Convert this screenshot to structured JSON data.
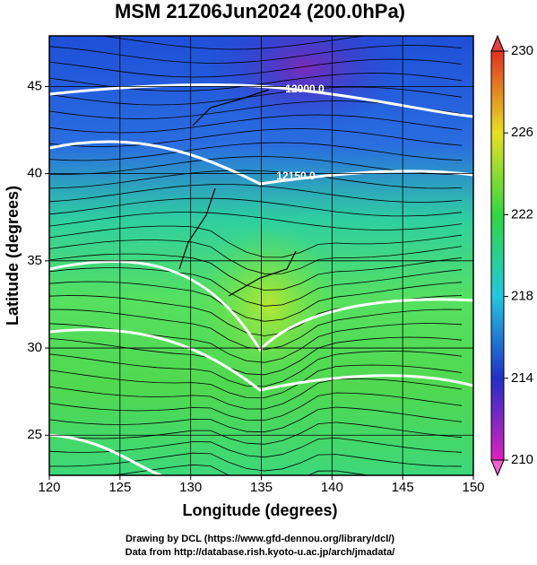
{
  "title": "MSM 21Z06Jun2024 (200.0hPa)",
  "map": {
    "xlim": [
      120,
      150
    ],
    "ylim": [
      22.7,
      47.9
    ],
    "x_axis": {
      "label": "Longitude (degrees)",
      "ticks": [
        120,
        125,
        130,
        135,
        140,
        145,
        150
      ]
    },
    "y_axis": {
      "label": "Latitude  (degrees)",
      "ticks": [
        25,
        30,
        35,
        40,
        45
      ]
    },
    "contour_labels": [
      "12000.0",
      "12150.0"
    ]
  },
  "colorbar": {
    "range": [
      210,
      230
    ],
    "ticks": [
      210,
      214,
      218,
      222,
      226,
      230
    ]
  },
  "credits": [
    "Drawing by DCL (https://www.gfd-dennou.org/library/dcl/)",
    "Data from http://database.rish.kyoto-u.ac.jp/arch/jmadata/"
  ]
}
